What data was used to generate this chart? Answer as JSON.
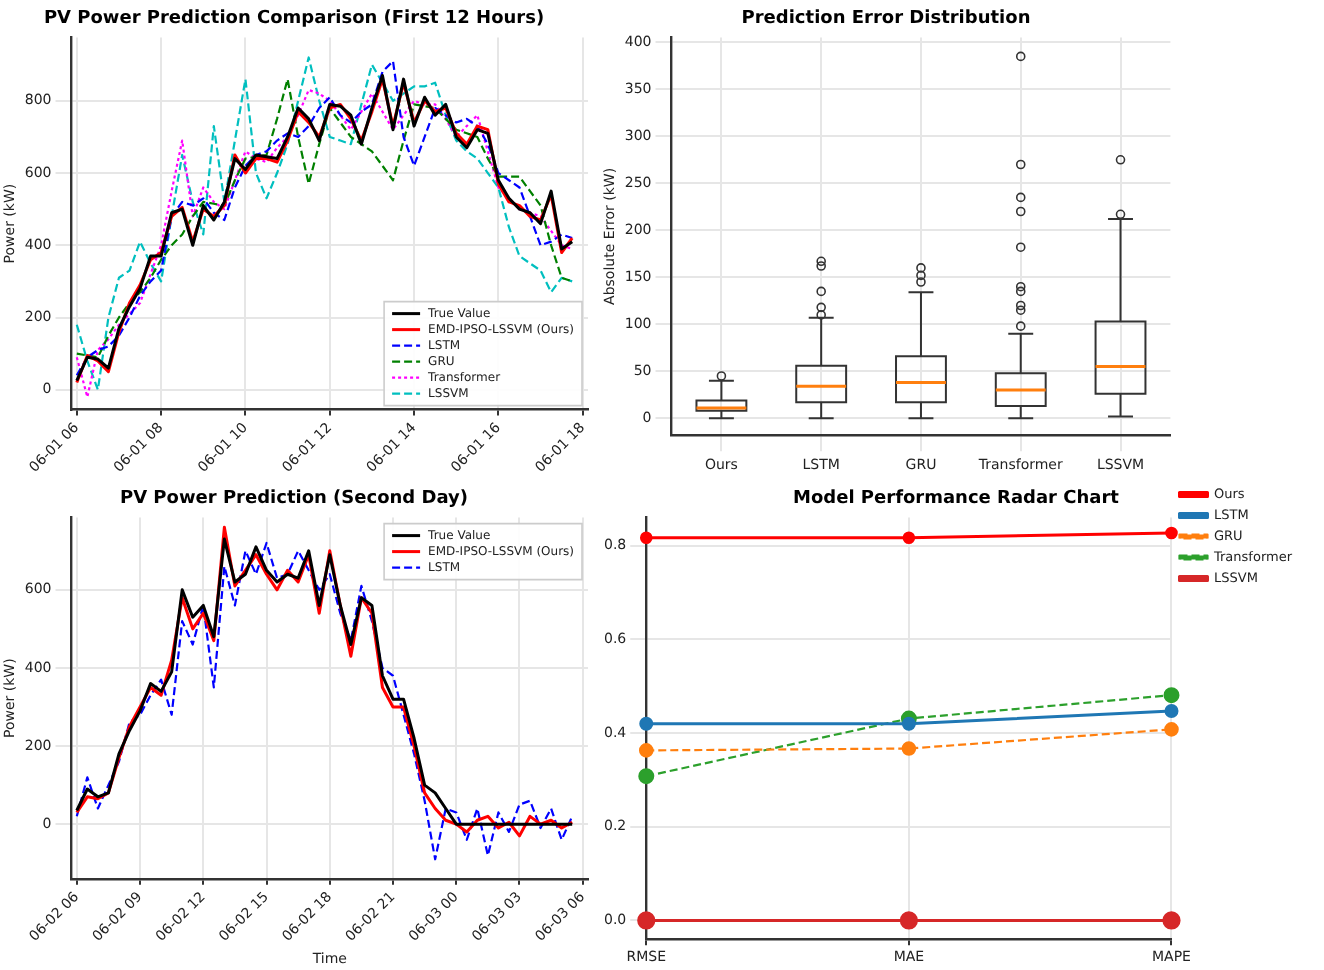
{
  "chart_data": [
    {
      "type": "line",
      "title": "PV Power Prediction Comparison (First 12 Hours)",
      "ylabel": "Power (kW)",
      "ylim": [
        -55,
        975
      ],
      "yticks": [
        0,
        200,
        400,
        600,
        800
      ],
      "grid": true,
      "legend": "bottom right",
      "marker": "none",
      "categories": [
        "06-01 06",
        null,
        null,
        null,
        null,
        null,
        null,
        null,
        "06-01 08",
        null,
        null,
        null,
        null,
        null,
        null,
        null,
        "06-01 10",
        null,
        null,
        null,
        null,
        null,
        null,
        null,
        "06-01 12",
        null,
        null,
        null,
        null,
        null,
        null,
        null,
        "06-01 14",
        null,
        null,
        null,
        null,
        null,
        null,
        null,
        "06-01 16",
        null,
        null,
        null,
        null,
        null,
        null,
        null,
        "06-01 18"
      ],
      "series": [
        {
          "name": "True Value",
          "color": "#000000",
          "line_style": "solid",
          "values": [
            25,
            90,
            85,
            60,
            170,
            230,
            280,
            370,
            370,
            490,
            500,
            400,
            510,
            470,
            520,
            640,
            610,
            650,
            645,
            640,
            700,
            780,
            750,
            690,
            790,
            785,
            760,
            680,
            780,
            870,
            720,
            860,
            730,
            810,
            760,
            790,
            700,
            670,
            720,
            710,
            580,
            530,
            500,
            490,
            460,
            550,
            390,
            410,
            null
          ]
        },
        {
          "name": "EMD-IPSO-LSSVM (Ours)",
          "color": "#ff0000",
          "line_style": "solid",
          "values": [
            20,
            95,
            80,
            50,
            160,
            240,
            290,
            360,
            380,
            480,
            505,
            410,
            500,
            480,
            510,
            650,
            600,
            640,
            640,
            630,
            690,
            770,
            740,
            700,
            780,
            790,
            750,
            690,
            770,
            860,
            730,
            850,
            740,
            800,
            770,
            780,
            710,
            680,
            730,
            720,
            570,
            520,
            510,
            480,
            470,
            540,
            380,
            420,
            null
          ]
        },
        {
          "name": "LSTM",
          "color": "#0000ff",
          "line_style": "dashed",
          "values": [
            40,
            90,
            110,
            120,
            150,
            200,
            260,
            300,
            330,
            480,
            520,
            510,
            530,
            490,
            470,
            560,
            620,
            650,
            660,
            690,
            710,
            700,
            730,
            780,
            810,
            760,
            740,
            770,
            790,
            880,
            910,
            700,
            620,
            700,
            780,
            760,
            740,
            750,
            730,
            680,
            600,
            580,
            560,
            480,
            400,
            410,
            430,
            420,
            null
          ]
        },
        {
          "name": "GRU",
          "color": "#008000",
          "line_style": "dashed",
          "values": [
            100,
            95,
            90,
            150,
            200,
            240,
            270,
            310,
            360,
            400,
            430,
            480,
            520,
            515,
            510,
            580,
            640,
            645,
            650,
            750,
            860,
            700,
            570,
            680,
            780,
            740,
            700,
            680,
            660,
            620,
            580,
            690,
            790,
            785,
            780,
            750,
            720,
            710,
            700,
            640,
            590,
            590,
            590,
            550,
            510,
            400,
            310,
            300,
            null
          ]
        },
        {
          "name": "Transformer",
          "color": "#ff00ff",
          "line_style": "dotted",
          "values": [
            90,
            -20,
            110,
            140,
            180,
            210,
            240,
            320,
            400,
            550,
            690,
            480,
            560,
            520,
            500,
            580,
            660,
            640,
            630,
            670,
            700,
            760,
            830,
            820,
            800,
            760,
            720,
            770,
            820,
            770,
            720,
            760,
            800,
            790,
            790,
            750,
            700,
            730,
            760,
            660,
            560,
            530,
            500,
            490,
            480,
            440,
            400,
            390,
            null
          ]
        },
        {
          "name": "LSSVM",
          "color": "#00bfbf",
          "line_style": "dashed",
          "values": [
            180,
            80,
            0,
            200,
            310,
            330,
            410,
            350,
            300,
            480,
            650,
            520,
            430,
            730,
            520,
            690,
            860,
            600,
            530,
            600,
            680,
            800,
            920,
            800,
            700,
            690,
            680,
            790,
            900,
            850,
            800,
            820,
            840,
            840,
            850,
            760,
            690,
            660,
            640,
            600,
            560,
            450,
            370,
            350,
            330,
            270,
            310,
            300,
            null
          ]
        }
      ]
    },
    {
      "type": "box",
      "title": "Prediction Error Distribution",
      "ylabel": "Absolute Error (kW)",
      "categories": [
        "Ours",
        "LSTM",
        "GRU",
        "Transformer",
        "LSSVM"
      ],
      "ylim": [
        -18,
        405
      ],
      "yticks": [
        0,
        50,
        100,
        150,
        200,
        250,
        300,
        350,
        400
      ],
      "grid": true,
      "boxes": [
        {
          "low": 0,
          "q1": 8,
          "median": 11,
          "q3": 19,
          "high": 40,
          "outliers": [
            45
          ]
        },
        {
          "low": 0,
          "q1": 17,
          "median": 34,
          "q3": 56,
          "high": 107,
          "outliers": [
            110,
            118,
            135,
            162,
            167
          ]
        },
        {
          "low": 0,
          "q1": 17,
          "median": 38,
          "q3": 66,
          "high": 134,
          "outliers": [
            145,
            152,
            160
          ]
        },
        {
          "low": 0,
          "q1": 13,
          "median": 30,
          "q3": 48,
          "high": 90,
          "outliers": [
            98,
            115,
            120,
            135,
            140,
            182,
            220,
            235,
            270,
            385
          ]
        },
        {
          "low": 2,
          "q1": 26,
          "median": 55,
          "q3": 103,
          "high": 212,
          "outliers": [
            217,
            275
          ]
        }
      ]
    },
    {
      "type": "line",
      "title": "PV Power Prediction (Second Day)",
      "xlabel": "Time",
      "ylabel": "Power (kW)",
      "ylim": [
        -140,
        785
      ],
      "yticks": [
        0,
        200,
        400,
        600
      ],
      "grid": true,
      "legend": "top right",
      "marker": "none",
      "categories": [
        "06-02 06",
        null,
        null,
        null,
        null,
        null,
        "06-02 09",
        null,
        null,
        null,
        null,
        null,
        "06-02 12",
        null,
        null,
        null,
        null,
        null,
        "06-02 15",
        null,
        null,
        null,
        null,
        null,
        "06-02 18",
        null,
        null,
        null,
        null,
        null,
        "06-02 21",
        null,
        null,
        null,
        null,
        null,
        "06-03 00",
        null,
        null,
        null,
        null,
        null,
        "06-03 03",
        null,
        null,
        null,
        null,
        null,
        "06-03 06"
      ],
      "series": [
        {
          "name": "True Value",
          "color": "#000000",
          "line_style": "solid",
          "values": [
            35,
            90,
            70,
            80,
            180,
            240,
            290,
            360,
            340,
            390,
            600,
            530,
            560,
            480,
            730,
            620,
            640,
            710,
            650,
            620,
            640,
            630,
            700,
            560,
            690,
            560,
            460,
            580,
            560,
            380,
            320,
            320,
            220,
            100,
            80,
            40,
            0,
            0,
            0,
            0,
            0,
            0,
            0,
            0,
            0,
            0,
            0,
            0,
            null
          ]
        },
        {
          "name": "EMD-IPSO-LSSVM (Ours)",
          "color": "#ff0000",
          "line_style": "solid",
          "values": [
            30,
            70,
            65,
            80,
            170,
            250,
            300,
            350,
            330,
            420,
            580,
            500,
            540,
            470,
            760,
            610,
            650,
            690,
            640,
            600,
            650,
            620,
            690,
            540,
            700,
            560,
            430,
            580,
            540,
            350,
            300,
            300,
            200,
            80,
            40,
            10,
            0,
            -20,
            10,
            20,
            -10,
            5,
            -30,
            20,
            0,
            10,
            -10,
            5,
            null
          ]
        },
        {
          "name": "LSTM",
          "color": "#0000ff",
          "line_style": "dashed",
          "values": [
            20,
            120,
            40,
            100,
            160,
            260,
            280,
            330,
            370,
            280,
            520,
            460,
            560,
            350,
            660,
            560,
            700,
            640,
            720,
            630,
            640,
            700,
            650,
            600,
            640,
            540,
            470,
            610,
            520,
            400,
            380,
            280,
            180,
            60,
            -90,
            40,
            30,
            -40,
            40,
            -80,
            30,
            -20,
            50,
            60,
            -10,
            40,
            -40,
            20,
            null
          ]
        }
      ]
    },
    {
      "type": "line",
      "title": "Model Performance Radar Chart",
      "categories": [
        "RMSE",
        "MAE",
        "MAPE"
      ],
      "ylim": [
        -0.04,
        0.86
      ],
      "yticks": [
        {
          "value": 0,
          "label": "0.0"
        },
        {
          "value": 0.2,
          "label": "0.2"
        },
        {
          "value": 0.4,
          "label": "0.4"
        },
        {
          "value": 0.6,
          "label": "0.6"
        },
        {
          "value": 0.8,
          "label": "0.8"
        }
      ],
      "grid": true,
      "legend": "right",
      "marker": "circle",
      "series": [
        {
          "name": "Ours",
          "color": "#ff0000",
          "line_style": "solid",
          "values": [
            0.817,
            0.817,
            0.827
          ]
        },
        {
          "name": "LSTM",
          "color": "#1f77b4",
          "line_style": "solid",
          "values": [
            0.42,
            0.42,
            0.447
          ]
        },
        {
          "name": "GRU",
          "color": "#ff7f0e",
          "line_style": "dashed",
          "values": [
            0.363,
            0.367,
            0.408
          ]
        },
        {
          "name": "Transformer",
          "color": "#2ca02c",
          "line_style": "dashed",
          "values": [
            0.308,
            0.431,
            0.481
          ]
        },
        {
          "name": "LSSVM",
          "color": "#d62728",
          "line_style": "solid",
          "values": [
            0,
            0,
            0
          ]
        }
      ]
    }
  ]
}
